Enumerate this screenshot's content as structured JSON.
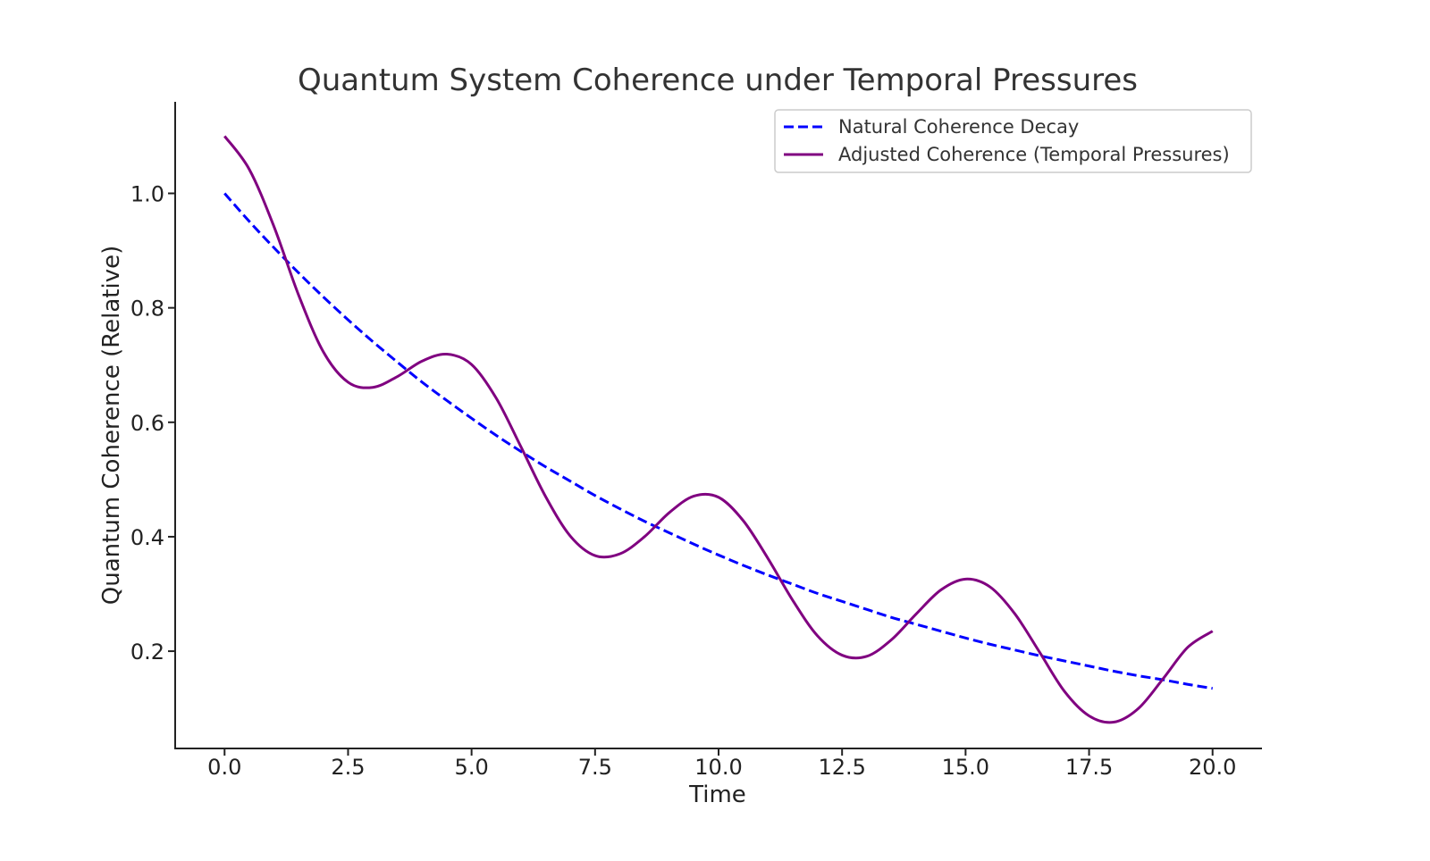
{
  "chart_data": {
    "type": "line",
    "title": "Quantum System Coherence under Temporal Pressures",
    "xlabel": "Time",
    "ylabel": "Quantum Coherence (Relative)",
    "xlim": [
      -1.0,
      21.0
    ],
    "ylim": [
      0.03,
      1.16
    ],
    "x_ticks": [
      0.0,
      2.5,
      5.0,
      7.5,
      10.0,
      12.5,
      15.0,
      17.5,
      20.0
    ],
    "x_tick_labels": [
      "0.0",
      "2.5",
      "5.0",
      "7.5",
      "10.0",
      "12.5",
      "15.0",
      "17.5",
      "20.0"
    ],
    "y_ticks": [
      0.2,
      0.4,
      0.6,
      0.8,
      1.0
    ],
    "y_tick_labels": [
      "0.2",
      "0.4",
      "0.6",
      "0.8",
      "1.0"
    ],
    "grid": false,
    "legend_position": "top-right",
    "series": [
      {
        "name": "Natural Coherence Decay",
        "color": "#0000ff",
        "style": "dashed",
        "x": [
          0,
          0.5,
          1,
          1.5,
          2,
          2.5,
          3,
          3.5,
          4,
          4.5,
          5,
          5.5,
          6,
          6.5,
          7,
          7.5,
          8,
          8.5,
          9,
          9.5,
          10,
          10.5,
          11,
          11.5,
          12,
          12.5,
          13,
          13.5,
          14,
          14.5,
          15,
          15.5,
          16,
          16.5,
          17,
          17.5,
          18,
          18.5,
          19,
          19.5,
          20
        ],
        "y": [
          1.0,
          0.951,
          0.905,
          0.861,
          0.819,
          0.779,
          0.741,
          0.705,
          0.67,
          0.638,
          0.607,
          0.577,
          0.549,
          0.522,
          0.497,
          0.472,
          0.449,
          0.427,
          0.407,
          0.387,
          0.368,
          0.35,
          0.333,
          0.317,
          0.301,
          0.287,
          0.273,
          0.259,
          0.247,
          0.235,
          0.223,
          0.212,
          0.202,
          0.192,
          0.183,
          0.174,
          0.165,
          0.157,
          0.15,
          0.142,
          0.135
        ]
      },
      {
        "name": "Adjusted Coherence (Temporal Pressures)",
        "color": "#800080",
        "style": "solid",
        "x": [
          0,
          0.5,
          1,
          1.5,
          2,
          2.5,
          3,
          3.5,
          4,
          4.5,
          5,
          5.5,
          6,
          6.5,
          7,
          7.5,
          8,
          8.5,
          9,
          9.5,
          10,
          10.5,
          11,
          11.5,
          12,
          12.5,
          13,
          13.5,
          14,
          14.5,
          15,
          15.5,
          16,
          16.5,
          17,
          17.5,
          18,
          18.5,
          19,
          19.5,
          20
        ],
        "y": [
          1.1,
          1.042,
          0.942,
          0.822,
          0.723,
          0.67,
          0.661,
          0.68,
          0.707,
          0.719,
          0.701,
          0.642,
          0.557,
          0.47,
          0.401,
          0.367,
          0.37,
          0.4,
          0.442,
          0.471,
          0.469,
          0.428,
          0.362,
          0.289,
          0.227,
          0.193,
          0.191,
          0.22,
          0.265,
          0.307,
          0.326,
          0.312,
          0.265,
          0.198,
          0.13,
          0.087,
          0.076,
          0.1,
          0.152,
          0.207,
          0.235
        ]
      }
    ]
  }
}
